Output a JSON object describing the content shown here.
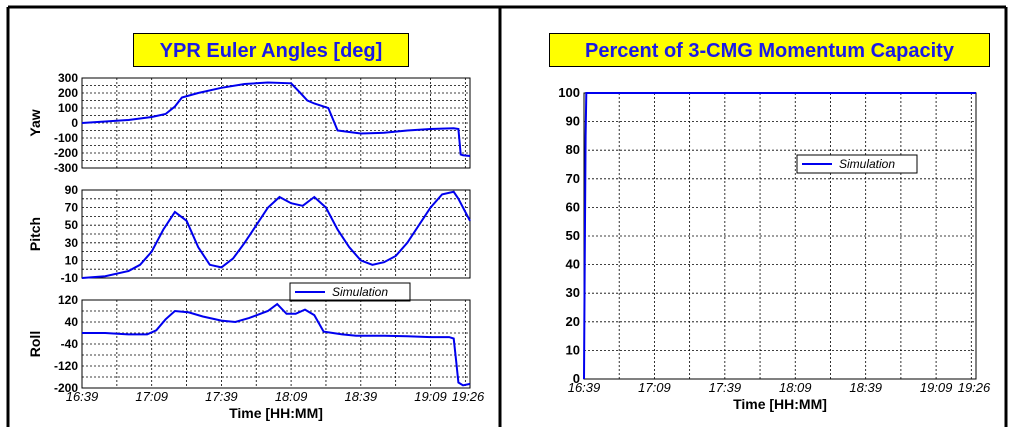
{
  "left_panel": {
    "title": "YPR Euler Angles [deg]",
    "xlabel": "Time [HH:MM]",
    "x_ticks": [
      "16:39",
      "17:09",
      "17:39",
      "18:09",
      "18:39",
      "19:09",
      "19:26"
    ]
  },
  "right_panel": {
    "title": "Percent of 3-CMG Momentum Capacity",
    "xlabel": "Time [HH:MM]",
    "x_ticks": [
      "16:39",
      "17:09",
      "17:39",
      "18:09",
      "18:39",
      "19:09",
      "19:26"
    ]
  },
  "colors": {
    "title_bg": "#ffff00",
    "title_text": "#1a1ae6",
    "line": "#0000ee",
    "grid": "#000000"
  },
  "chart_data": [
    {
      "type": "line",
      "ylabel": "Yaw",
      "ylim": [
        -300,
        300
      ],
      "yticks": [
        300,
        200,
        100,
        0,
        -100,
        -200,
        -300
      ],
      "xlim": [
        0,
        167
      ],
      "grid": true,
      "series": [
        {
          "name": "Simulation",
          "color": "#0000ee",
          "x": [
            0,
            10,
            20,
            30,
            36,
            40,
            43,
            50,
            60,
            70,
            80,
            90,
            94,
            97,
            100,
            106,
            110,
            115,
            120,
            130,
            140,
            150,
            160,
            162,
            163,
            164,
            167
          ],
          "y": [
            0,
            10,
            20,
            40,
            60,
            110,
            170,
            200,
            235,
            260,
            270,
            265,
            200,
            150,
            130,
            100,
            -50,
            -60,
            -70,
            -65,
            -50,
            -40,
            -35,
            -40,
            -210,
            -215,
            -220
          ]
        }
      ]
    },
    {
      "type": "line",
      "ylabel": "Pitch",
      "ylim": [
        -10,
        90
      ],
      "yticks": [
        90,
        70,
        50,
        30,
        10,
        -10
      ],
      "xlim": [
        0,
        167
      ],
      "grid": true,
      "legend": {
        "position": "bottom-center"
      },
      "series": [
        {
          "name": "Simulation",
          "color": "#0000ee",
          "x": [
            0,
            10,
            20,
            25,
            30,
            35,
            40,
            45,
            50,
            55,
            60,
            65,
            70,
            75,
            80,
            85,
            90,
            95,
            100,
            105,
            110,
            115,
            120,
            125,
            130,
            135,
            140,
            145,
            150,
            155,
            160,
            162,
            167
          ],
          "y": [
            -10,
            -8,
            -2,
            5,
            20,
            45,
            65,
            55,
            25,
            5,
            2,
            12,
            30,
            50,
            70,
            82,
            75,
            72,
            82,
            70,
            45,
            25,
            10,
            5,
            8,
            15,
            30,
            50,
            70,
            85,
            88,
            80,
            55
          ]
        }
      ]
    },
    {
      "type": "line",
      "ylabel": "Roll",
      "ylim": [
        -200,
        120
      ],
      "yticks": [
        120,
        40,
        -40,
        -120,
        -200
      ],
      "xlim": [
        0,
        167
      ],
      "grid": true,
      "series": [
        {
          "name": "Simulation",
          "color": "#0000ee",
          "x": [
            0,
            10,
            20,
            28,
            32,
            36,
            40,
            46,
            52,
            60,
            66,
            72,
            80,
            84,
            88,
            92,
            96,
            100,
            104,
            108,
            112,
            118,
            130,
            140,
            150,
            158,
            160,
            161,
            162,
            164,
            167
          ],
          "y": [
            0,
            0,
            -5,
            -5,
            10,
            50,
            80,
            75,
            60,
            45,
            40,
            55,
            80,
            105,
            70,
            70,
            85,
            65,
            5,
            0,
            -5,
            -10,
            -10,
            -12,
            -15,
            -15,
            -20,
            -100,
            -180,
            -190,
            -185
          ]
        }
      ]
    },
    {
      "type": "line",
      "ylim": [
        0,
        100
      ],
      "yticks": [
        100,
        90,
        80,
        70,
        60,
        50,
        40,
        30,
        20,
        10,
        0
      ],
      "xlim": [
        0,
        167
      ],
      "grid": true,
      "legend": {
        "position": "upper-right"
      },
      "series": [
        {
          "name": "Simulation",
          "color": "#0000ee",
          "x": [
            0,
            0.3,
            0.7,
            1,
            167
          ],
          "y": [
            0,
            40,
            85,
            100,
            100
          ]
        }
      ]
    }
  ]
}
